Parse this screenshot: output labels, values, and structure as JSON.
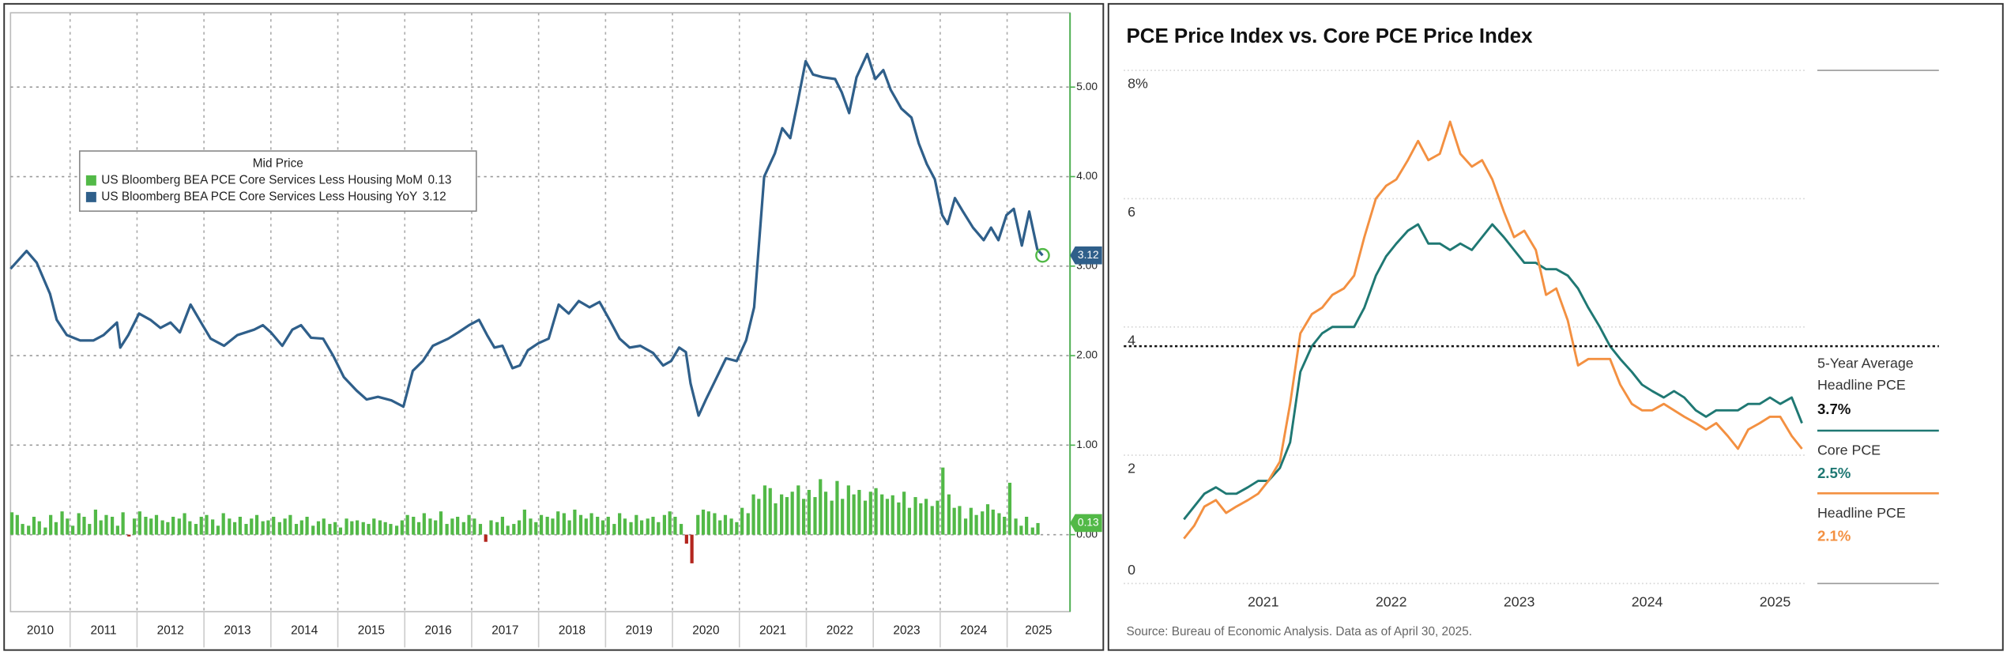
{
  "chart_data": [
    {
      "type": "combo",
      "legend_title": "Mid Price",
      "categories": [
        "2010",
        "2011",
        "2012",
        "2013",
        "2014",
        "2015",
        "2016",
        "2017",
        "2018",
        "2019",
        "2020",
        "2021",
        "2022",
        "2023",
        "2024",
        "2025"
      ],
      "xlim": [
        2010.11,
        2025.94
      ],
      "ylim": [
        -0.86,
        5.83
      ],
      "yticks": [
        {
          "value": 0,
          "label": "0.00"
        },
        {
          "value": 1,
          "label": "1.00"
        },
        {
          "value": 2,
          "label": "2.00"
        },
        {
          "value": 3,
          "label": "3.00"
        },
        {
          "value": 4,
          "label": "4.00"
        },
        {
          "value": 5,
          "label": "5.00"
        }
      ],
      "grid": true,
      "series": [
        {
          "name": "US Bloomberg BEA PCE Core Services Less Housing MoM",
          "type": "bar",
          "color": "#52b947",
          "negative_color": "#b3261e",
          "x": [
            2010.13,
            2010.21,
            2010.29,
            2010.38,
            2010.46,
            2010.54,
            2010.63,
            2010.71,
            2010.79,
            2010.88,
            2010.96,
            2011.04,
            2011.13,
            2011.21,
            2011.29,
            2011.38,
            2011.46,
            2011.54,
            2011.63,
            2011.71,
            2011.79,
            2011.88,
            2011.96,
            2012.04,
            2012.13,
            2012.21,
            2012.29,
            2012.38,
            2012.46,
            2012.54,
            2012.63,
            2012.71,
            2012.79,
            2012.88,
            2012.96,
            2013.04,
            2013.13,
            2013.21,
            2013.29,
            2013.38,
            2013.46,
            2013.54,
            2013.63,
            2013.71,
            2013.79,
            2013.88,
            2013.96,
            2014.04,
            2014.13,
            2014.21,
            2014.29,
            2014.38,
            2014.46,
            2014.54,
            2014.63,
            2014.71,
            2014.79,
            2014.88,
            2014.96,
            2015.04,
            2015.13,
            2015.21,
            2015.29,
            2015.38,
            2015.46,
            2015.54,
            2015.63,
            2015.71,
            2015.79,
            2015.88,
            2015.96,
            2016.04,
            2016.13,
            2016.21,
            2016.29,
            2016.38,
            2016.46,
            2016.54,
            2016.63,
            2016.71,
            2016.79,
            2016.88,
            2016.96,
            2017.04,
            2017.13,
            2017.21,
            2017.29,
            2017.38,
            2017.46,
            2017.54,
            2017.63,
            2017.71,
            2017.79,
            2017.88,
            2017.96,
            2018.04,
            2018.13,
            2018.21,
            2018.29,
            2018.38,
            2018.46,
            2018.54,
            2018.63,
            2018.71,
            2018.79,
            2018.88,
            2018.96,
            2019.04,
            2019.13,
            2019.21,
            2019.29,
            2019.38,
            2019.46,
            2019.54,
            2019.63,
            2019.71,
            2019.79,
            2019.88,
            2019.96,
            2020.04,
            2020.13,
            2020.21,
            2020.29,
            2020.38,
            2020.46,
            2020.54,
            2020.63,
            2020.71,
            2020.79,
            2020.88,
            2020.96,
            2021.04,
            2021.13,
            2021.21,
            2021.29,
            2021.38,
            2021.46,
            2021.54,
            2021.63,
            2021.71,
            2021.79,
            2021.88,
            2021.96,
            2022.04,
            2022.13,
            2022.21,
            2022.29,
            2022.38,
            2022.46,
            2022.54,
            2022.63,
            2022.71,
            2022.79,
            2022.88,
            2022.96,
            2023.04,
            2023.13,
            2023.21,
            2023.29,
            2023.38,
            2023.46,
            2023.54,
            2023.63,
            2023.71,
            2023.79,
            2023.88,
            2023.96,
            2024.04,
            2024.13,
            2024.21,
            2024.29,
            2024.38,
            2024.46,
            2024.54,
            2024.63,
            2024.71,
            2024.79,
            2024.88,
            2024.96,
            2025.04,
            2025.13,
            2025.21,
            2025.29,
            2025.38,
            2025.46
          ],
          "values": [
            0.25,
            0.22,
            0.12,
            0.1,
            0.2,
            0.15,
            0.08,
            0.22,
            0.14,
            0.26,
            0.18,
            0.1,
            0.24,
            0.2,
            0.12,
            0.28,
            0.16,
            0.22,
            0.2,
            0.1,
            0.25,
            -0.02,
            0.18,
            0.26,
            0.2,
            0.18,
            0.22,
            0.16,
            0.14,
            0.2,
            0.18,
            0.24,
            0.15,
            0.12,
            0.2,
            0.22,
            0.17,
            0.1,
            0.24,
            0.18,
            0.14,
            0.2,
            0.12,
            0.18,
            0.22,
            0.15,
            0.16,
            0.2,
            0.14,
            0.18,
            0.22,
            0.12,
            0.16,
            0.2,
            0.1,
            0.15,
            0.18,
            0.12,
            0.14,
            0.08,
            0.18,
            0.15,
            0.16,
            0.14,
            0.12,
            0.18,
            0.16,
            0.14,
            0.12,
            0.1,
            0.16,
            0.22,
            0.2,
            0.14,
            0.24,
            0.18,
            0.16,
            0.26,
            0.12,
            0.18,
            0.2,
            0.14,
            0.22,
            0.18,
            0.12,
            -0.08,
            0.16,
            0.14,
            0.2,
            0.1,
            0.12,
            0.16,
            0.28,
            0.18,
            0.14,
            0.22,
            0.2,
            0.18,
            0.26,
            0.24,
            0.16,
            0.28,
            0.22,
            0.18,
            0.24,
            0.2,
            0.16,
            0.2,
            0.12,
            0.24,
            0.18,
            0.14,
            0.22,
            0.16,
            0.18,
            0.2,
            0.14,
            0.22,
            0.26,
            0.2,
            0.12,
            -0.1,
            -0.32,
            0.22,
            0.28,
            0.26,
            0.24,
            0.16,
            0.22,
            0.18,
            0.14,
            0.3,
            0.24,
            0.45,
            0.4,
            0.55,
            0.52,
            0.35,
            0.45,
            0.42,
            0.48,
            0.55,
            0.4,
            0.5,
            0.42,
            0.62,
            0.48,
            0.38,
            0.6,
            0.4,
            0.55,
            0.45,
            0.5,
            0.38,
            0.48,
            0.52,
            0.45,
            0.4,
            0.44,
            0.36,
            0.48,
            0.3,
            0.42,
            0.35,
            0.4,
            0.32,
            0.38,
            0.75,
            0.45,
            0.3,
            0.32,
            0.18,
            0.3,
            0.22,
            0.26,
            0.34,
            0.28,
            0.24,
            0.2,
            0.58,
            0.18,
            0.1,
            0.2,
            0.08,
            0.13
          ]
        },
        {
          "name": "US Bloomberg BEA PCE Core Services Less Housing YoY",
          "type": "line",
          "color": "#2f5f8a",
          "x": [
            2010.11,
            2010.35,
            2010.5,
            2010.7,
            2010.8,
            2010.95,
            2011.15,
            2011.35,
            2011.5,
            2011.7,
            2011.75,
            2011.87,
            2012.03,
            2012.2,
            2012.35,
            2012.5,
            2012.64,
            2012.8,
            2012.98,
            2013.1,
            2013.3,
            2013.5,
            2013.75,
            2013.88,
            2014.0,
            2014.17,
            2014.32,
            2014.45,
            2014.6,
            2014.78,
            2014.93,
            2015.09,
            2015.28,
            2015.43,
            2015.6,
            2015.8,
            2015.98,
            2016.12,
            2016.27,
            2016.42,
            2016.65,
            2016.8,
            2016.96,
            2017.11,
            2017.23,
            2017.34,
            2017.46,
            2017.61,
            2017.72,
            2017.84,
            2018.0,
            2018.15,
            2018.3,
            2018.45,
            2018.6,
            2018.76,
            2018.91,
            2019.06,
            2019.21,
            2019.36,
            2019.52,
            2019.71,
            2019.86,
            2019.98,
            2020.1,
            2020.2,
            2020.27,
            2020.39,
            2020.5,
            2020.65,
            2020.8,
            2020.96,
            2021.1,
            2021.22,
            2021.37,
            2021.53,
            2021.64,
            2021.76,
            2021.87,
            2021.99,
            2022.1,
            2022.25,
            2022.43,
            2022.53,
            2022.64,
            2022.75,
            2022.91,
            2023.03,
            2023.15,
            2023.26,
            2023.42,
            2023.57,
            2023.68,
            2023.8,
            2023.92,
            2024.03,
            2024.11,
            2024.22,
            2024.34,
            2024.49,
            2024.65,
            2024.76,
            2024.87,
            2024.99,
            2025.1,
            2025.22,
            2025.33,
            2025.45,
            2025.53
          ],
          "values": [
            2.97,
            3.17,
            3.04,
            2.69,
            2.4,
            2.23,
            2.17,
            2.17,
            2.23,
            2.37,
            2.09,
            2.23,
            2.47,
            2.4,
            2.31,
            2.37,
            2.26,
            2.57,
            2.34,
            2.19,
            2.11,
            2.23,
            2.29,
            2.34,
            2.26,
            2.11,
            2.29,
            2.34,
            2.2,
            2.19,
            2.0,
            1.76,
            1.61,
            1.51,
            1.54,
            1.5,
            1.43,
            1.83,
            1.94,
            2.11,
            2.19,
            2.26,
            2.34,
            2.4,
            2.23,
            2.09,
            2.11,
            1.86,
            1.89,
            2.06,
            2.14,
            2.19,
            2.57,
            2.47,
            2.61,
            2.54,
            2.6,
            2.4,
            2.19,
            2.09,
            2.11,
            2.03,
            1.89,
            1.94,
            2.09,
            2.04,
            1.69,
            1.33,
            1.51,
            1.74,
            1.97,
            1.94,
            2.17,
            2.54,
            4.0,
            4.26,
            4.54,
            4.43,
            4.83,
            5.29,
            5.14,
            5.11,
            5.09,
            4.94,
            4.71,
            5.11,
            5.37,
            5.09,
            5.19,
            4.97,
            4.76,
            4.66,
            4.37,
            4.14,
            3.97,
            3.57,
            3.47,
            3.76,
            3.61,
            3.43,
            3.29,
            3.43,
            3.29,
            3.57,
            3.64,
            3.23,
            3.61,
            3.19,
            3.12
          ]
        }
      ]
    },
    {
      "type": "line",
      "title": "PCE Price Index vs. Core PCE Price Index",
      "x": [
        2020.38,
        2020.46,
        2020.54,
        2020.63,
        2020.71,
        2020.79,
        2020.88,
        2020.96,
        2021.04,
        2021.13,
        2021.21,
        2021.29,
        2021.38,
        2021.46,
        2021.54,
        2021.63,
        2021.71,
        2021.79,
        2021.88,
        2021.96,
        2022.04,
        2022.13,
        2022.21,
        2022.29,
        2022.38,
        2022.46,
        2022.54,
        2022.63,
        2022.71,
        2022.79,
        2022.88,
        2022.96,
        2023.04,
        2023.13,
        2023.21,
        2023.29,
        2023.38,
        2023.46,
        2023.54,
        2023.63,
        2023.71,
        2023.79,
        2023.88,
        2023.96,
        2024.04,
        2024.13,
        2024.21,
        2024.29,
        2024.38,
        2024.46,
        2024.54,
        2024.63,
        2024.71,
        2024.79,
        2024.88,
        2024.96,
        2025.04,
        2025.13,
        2025.21
      ],
      "xlim": [
        2019.91,
        2025.23
      ],
      "xticks": [
        2021,
        2022,
        2023,
        2024,
        2025
      ],
      "ylim": [
        0,
        8
      ],
      "yticks": [
        0,
        2,
        4,
        6,
        {
          "value": 8,
          "label": "8%"
        }
      ],
      "grid": true,
      "series": [
        {
          "name": "Core PCE",
          "color": "#1f7873",
          "value_label": "2.5%",
          "values": [
            1.0,
            1.2,
            1.4,
            1.5,
            1.4,
            1.4,
            1.5,
            1.6,
            1.6,
            1.8,
            2.2,
            3.3,
            3.7,
            3.9,
            4.0,
            4.0,
            4.0,
            4.3,
            4.8,
            5.1,
            5.3,
            5.5,
            5.6,
            5.3,
            5.3,
            5.2,
            5.3,
            5.2,
            5.4,
            5.6,
            5.4,
            5.2,
            5.0,
            5.0,
            4.9,
            4.9,
            4.8,
            4.6,
            4.3,
            4.0,
            3.7,
            3.5,
            3.3,
            3.1,
            3.0,
            2.9,
            3.0,
            2.9,
            2.7,
            2.6,
            2.7,
            2.7,
            2.7,
            2.8,
            2.8,
            2.9,
            2.8,
            2.9,
            2.5
          ]
        },
        {
          "name": "Headline PCE",
          "color": "#f39041",
          "value_label": "2.1%",
          "values": [
            0.7,
            0.9,
            1.2,
            1.3,
            1.1,
            1.2,
            1.3,
            1.4,
            1.6,
            1.9,
            2.8,
            3.9,
            4.2,
            4.3,
            4.5,
            4.6,
            4.8,
            5.4,
            6.0,
            6.2,
            6.3,
            6.6,
            6.9,
            6.6,
            6.7,
            7.2,
            6.7,
            6.5,
            6.6,
            6.3,
            5.8,
            5.4,
            5.5,
            5.2,
            4.5,
            4.6,
            4.1,
            3.4,
            3.5,
            3.5,
            3.5,
            3.1,
            2.8,
            2.7,
            2.7,
            2.8,
            2.7,
            2.6,
            2.5,
            2.4,
            2.5,
            2.3,
            2.1,
            2.4,
            2.5,
            2.6,
            2.6,
            2.3,
            2.1
          ]
        }
      ],
      "reference_line": {
        "label_lines": [
          "5-Year Average",
          "Headline PCE"
        ],
        "value": 3.7,
        "value_label": "3.7%",
        "color": "#111111",
        "style": "dotted"
      },
      "source": "Source: Bureau of Economic Analysis. Data as of April 30, 2025."
    }
  ]
}
